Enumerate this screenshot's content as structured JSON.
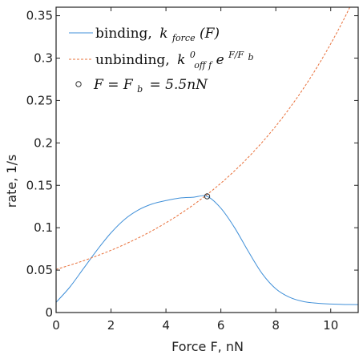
{
  "chart_data": {
    "type": "line",
    "xlabel": "Force F, nN",
    "ylabel": "rate, 1/s",
    "xlim": [
      0,
      11
    ],
    "ylim": [
      0,
      0.36
    ],
    "xticks": [
      0,
      2,
      4,
      6,
      8,
      10
    ],
    "yticks": [
      0,
      0.05,
      0.1,
      0.15,
      0.2,
      0.25,
      0.3,
      0.35
    ],
    "xtick_labels": [
      "0",
      "2",
      "4",
      "6",
      "8",
      "10"
    ],
    "ytick_labels": [
      "0",
      "0.05",
      "0.1",
      "0.15",
      "0.2",
      "0.25",
      "0.3",
      "0.35"
    ],
    "grid": false,
    "legend_position": "top-left",
    "legend": {
      "binding": "binding,",
      "binding_k": "k",
      "binding_sub": "force",
      "binding_arg": "(F)",
      "unbinding": "unbinding,",
      "unbinding_k": "k",
      "unbinding_sup": "0",
      "unbinding_sub": "off f",
      "unbinding_exp_base": "e",
      "unbinding_exp_sup": "F/F",
      "unbinding_exp_sub": "b",
      "point_label": "F = F",
      "point_sub": "b",
      "point_value": "= 5.5nN"
    },
    "series": [
      {
        "name": "binding",
        "style": "solid",
        "color": "#3f8fd8",
        "x": [
          0,
          0.5,
          1,
          1.5,
          2,
          2.5,
          3,
          3.5,
          4,
          4.5,
          5,
          5.5,
          6,
          6.5,
          7,
          7.5,
          8,
          8.5,
          9,
          9.5,
          10,
          10.5,
          11
        ],
        "y": [
          0.012,
          0.03,
          0.052,
          0.074,
          0.094,
          0.11,
          0.121,
          0.128,
          0.132,
          0.135,
          0.136,
          0.137,
          0.123,
          0.1,
          0.072,
          0.046,
          0.028,
          0.018,
          0.013,
          0.011,
          0.01,
          0.0095,
          0.0093
        ]
      },
      {
        "name": "unbinding",
        "style": "dashed",
        "color": "#e8703a",
        "x": [
          0,
          0.5,
          1,
          1.5,
          2,
          2.5,
          3,
          3.5,
          4,
          4.5,
          5,
          5.5,
          6,
          6.5,
          7,
          7.5,
          8,
          8.5,
          9,
          9.5,
          10,
          10.5,
          11
        ],
        "y": [
          0.0509,
          0.0558,
          0.0611,
          0.067,
          0.0734,
          0.0804,
          0.0881,
          0.0965,
          0.1058,
          0.1159,
          0.127,
          0.1392,
          0.1525,
          0.1671,
          0.1831,
          0.2006,
          0.2198,
          0.2409,
          0.2639,
          0.2892,
          0.3169,
          0.3472,
          0.3805
        ]
      }
    ],
    "marker": {
      "x": 5.5,
      "y": 0.137,
      "shape": "open-circle"
    }
  }
}
